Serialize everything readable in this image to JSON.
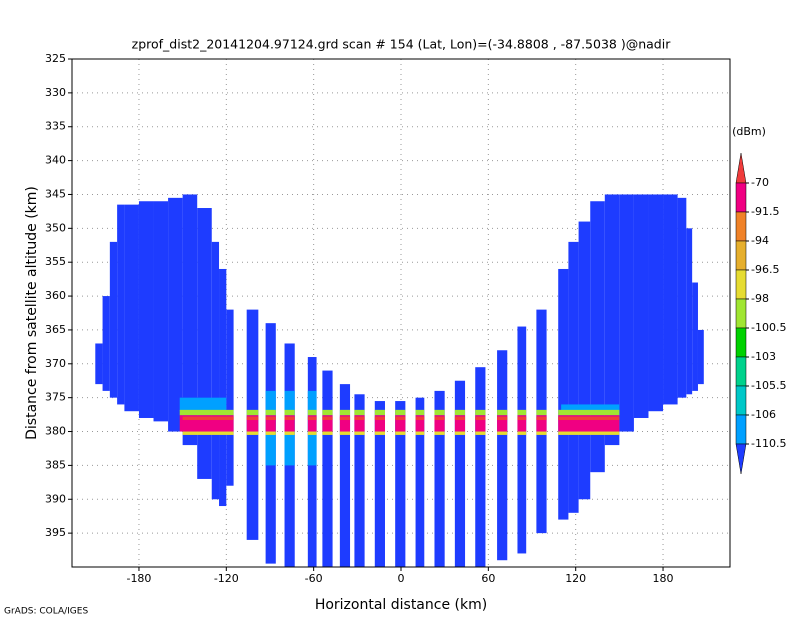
{
  "chart_data": {
    "type": "heatmap",
    "title": "zprof_dist2_20141204.97124.grd  scan # 154  (Lat, Lon)=(-34.8808 , -87.5038 )@nadir",
    "xlabel": "Horizontal distance (km)",
    "ylabel": "Distance from satellite altitude (km)",
    "footer": "GrADS: COLA/IGES",
    "colorbar_label": "(dBm)",
    "xlim": [
      -226,
      226
    ],
    "ylim": [
      325,
      400
    ],
    "y_inverted": true,
    "xticks": [
      -180,
      -120,
      -60,
      0,
      60,
      120,
      180
    ],
    "yticks": [
      325,
      330,
      335,
      340,
      345,
      350,
      355,
      360,
      365,
      370,
      375,
      380,
      385,
      390,
      395
    ],
    "grid": true,
    "levels": [
      -70,
      -91.5,
      -94,
      -96.5,
      -98,
      -100.5,
      -103,
      -105.5,
      -106,
      -110.5
    ],
    "colors": [
      "#f03c3c",
      "#f00082",
      "#f08228",
      "#e6af2d",
      "#e6dc32",
      "#a0e632",
      "#00d200",
      "#00d28c",
      "#00c8c8",
      "#00a0ff",
      "#1e3cff"
    ],
    "swaths": [
      {
        "x": [
          -210,
          -205
        ],
        "y": [
          367,
          373
        ],
        "value": -112
      },
      {
        "x": [
          -205,
          -200
        ],
        "y": [
          360,
          374
        ],
        "value": -112
      },
      {
        "x": [
          -200,
          -195
        ],
        "y": [
          352,
          375
        ],
        "value": -112
      },
      {
        "x": [
          -195,
          -190
        ],
        "y": [
          346.5,
          376
        ],
        "value": -112
      },
      {
        "x": [
          -190,
          -180
        ],
        "y": [
          346.5,
          377
        ],
        "value": -112
      },
      {
        "x": [
          -180,
          -170
        ],
        "y": [
          346,
          378
        ],
        "value": -112
      },
      {
        "x": [
          -170,
          -160
        ],
        "y": [
          346,
          378.5
        ],
        "value": -112
      },
      {
        "x": [
          -160,
          -150
        ],
        "y": [
          345.5,
          380
        ],
        "value": -112
      },
      {
        "x": [
          -150,
          -140
        ],
        "y": [
          345,
          382
        ],
        "value": -112
      },
      {
        "x": [
          -140,
          -130
        ],
        "y": [
          347,
          387
        ],
        "value": -112
      },
      {
        "x": [
          -130,
          -125
        ],
        "y": [
          352,
          390
        ],
        "value": -112
      },
      {
        "x": [
          -125,
          -120
        ],
        "y": [
          356,
          391
        ],
        "value": -112
      },
      {
        "x": [
          -120,
          -115
        ],
        "y": [
          362,
          388
        ],
        "value": -112
      },
      {
        "x": [
          -106,
          -98
        ],
        "y": [
          362,
          396
        ],
        "value": -112
      },
      {
        "x": [
          -93,
          -86
        ],
        "y": [
          364,
          399.5
        ],
        "value": -112
      },
      {
        "x": [
          -80,
          -73
        ],
        "y": [
          367,
          400
        ],
        "value": -112
      },
      {
        "x": [
          -64,
          -58
        ],
        "y": [
          369,
          400
        ],
        "value": -112
      },
      {
        "x": [
          -54,
          -47
        ],
        "y": [
          371,
          400
        ],
        "value": -112
      },
      {
        "x": [
          -42,
          -35
        ],
        "y": [
          373,
          400
        ],
        "value": -112
      },
      {
        "x": [
          -32,
          -25
        ],
        "y": [
          374.5,
          400
        ],
        "value": -112
      },
      {
        "x": [
          -18,
          -11
        ],
        "y": [
          375.5,
          400
        ],
        "value": -112
      },
      {
        "x": [
          -4,
          3
        ],
        "y": [
          375.5,
          400
        ],
        "value": -112
      },
      {
        "x": [
          10,
          16
        ],
        "y": [
          375,
          400
        ],
        "value": -112
      },
      {
        "x": [
          23,
          30
        ],
        "y": [
          374,
          400
        ],
        "value": -112
      },
      {
        "x": [
          37,
          44
        ],
        "y": [
          372.5,
          400
        ],
        "value": -112
      },
      {
        "x": [
          51,
          58
        ],
        "y": [
          370.5,
          400
        ],
        "value": -112
      },
      {
        "x": [
          66,
          73
        ],
        "y": [
          368,
          399
        ],
        "value": -112
      },
      {
        "x": [
          80,
          86
        ],
        "y": [
          364.5,
          398
        ],
        "value": -112
      },
      {
        "x": [
          93,
          100
        ],
        "y": [
          362,
          395
        ],
        "value": -112
      },
      {
        "x": [
          108,
          115
        ],
        "y": [
          356,
          393
        ],
        "value": -112
      },
      {
        "x": [
          115,
          122
        ],
        "y": [
          352,
          392
        ],
        "value": -112
      },
      {
        "x": [
          122,
          130
        ],
        "y": [
          349,
          390
        ],
        "value": -112
      },
      {
        "x": [
          130,
          140
        ],
        "y": [
          346,
          386
        ],
        "value": -112
      },
      {
        "x": [
          140,
          150
        ],
        "y": [
          345,
          382
        ],
        "value": -112
      },
      {
        "x": [
          150,
          160
        ],
        "y": [
          345,
          380
        ],
        "value": -112
      },
      {
        "x": [
          160,
          170
        ],
        "y": [
          345,
          378
        ],
        "value": -112
      },
      {
        "x": [
          170,
          180
        ],
        "y": [
          345,
          377
        ],
        "value": -112
      },
      {
        "x": [
          180,
          190
        ],
        "y": [
          345,
          376
        ],
        "value": -112
      },
      {
        "x": [
          190,
          196
        ],
        "y": [
          345.5,
          375
        ],
        "value": -112
      },
      {
        "x": [
          196,
          200
        ],
        "y": [
          350,
          374.5
        ],
        "value": -112
      },
      {
        "x": [
          200,
          204
        ],
        "y": [
          358,
          374
        ],
        "value": -112
      },
      {
        "x": [
          204,
          208
        ],
        "y": [
          365,
          373
        ],
        "value": -112
      }
    ],
    "echoes": [
      {
        "x": [
          -152,
          -120
        ],
        "y": [
          375,
          377
        ],
        "value": -107
      },
      {
        "x": [
          -95,
          -55
        ],
        "y": [
          374,
          385
        ],
        "value": -106.5
      },
      {
        "x": [
          110,
          150
        ],
        "y": [
          376,
          377.2
        ],
        "value": -107
      },
      {
        "x": [
          -152,
          150
        ],
        "y": [
          376.8,
          377.6
        ],
        "value": -100
      },
      {
        "x": [
          -152,
          150
        ],
        "y": [
          377.6,
          380
        ],
        "value": -91
      },
      {
        "x": [
          -150,
          150
        ],
        "y": [
          377.8,
          378.3
        ],
        "value": -65
      },
      {
        "x": [
          -152,
          150
        ],
        "y": [
          380,
          380.5
        ],
        "value": -97
      }
    ]
  }
}
